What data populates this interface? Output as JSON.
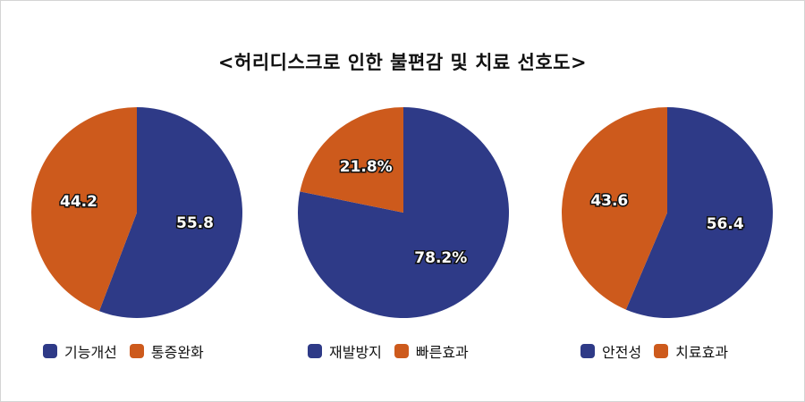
{
  "title": "<허리디스크로 인한 불편감 및 치료 선호도>",
  "colors": {
    "series1": "#2e3a87",
    "series2": "#cd5a1c"
  },
  "chart_data": [
    {
      "type": "pie",
      "slices": [
        {
          "name": "기능개선",
          "value": 55.8,
          "label": "55.8"
        },
        {
          "name": "통증완화",
          "value": 44.2,
          "label": "44.2"
        }
      ]
    },
    {
      "type": "pie",
      "slices": [
        {
          "name": "재발방지",
          "value": 78.2,
          "label": "78.2%"
        },
        {
          "name": "빠른효과",
          "value": 21.8,
          "label": "21.8%"
        }
      ]
    },
    {
      "type": "pie",
      "slices": [
        {
          "name": "안전성",
          "value": 56.4,
          "label": "56.4"
        },
        {
          "name": "치료효과",
          "value": 43.6,
          "label": "43.6"
        }
      ]
    }
  ]
}
